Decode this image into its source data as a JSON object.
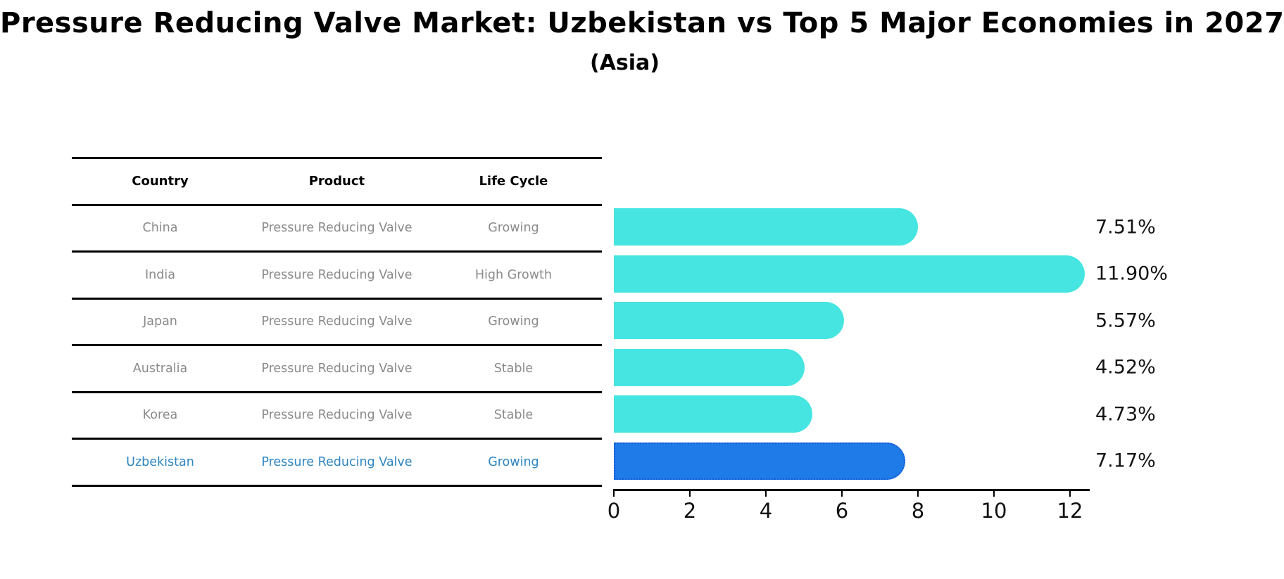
{
  "title": "Pressure Reducing Valve Market: Uzbekistan vs Top 5 Major Economies in 2027",
  "subtitle": "(Asia)",
  "table": {
    "headers": [
      "Country",
      "Product",
      "Life Cycle"
    ],
    "rows": [
      {
        "country": "China",
        "product": "Pressure Reducing Valve",
        "life_cycle": "Growing",
        "highlight": false
      },
      {
        "country": "India",
        "product": "Pressure Reducing Valve",
        "life_cycle": "High Growth",
        "highlight": false
      },
      {
        "country": "Japan",
        "product": "Pressure Reducing Valve",
        "life_cycle": "Growing",
        "highlight": false
      },
      {
        "country": "Australia",
        "product": "Pressure Reducing Valve",
        "life_cycle": "Stable",
        "highlight": false
      },
      {
        "country": "Korea",
        "product": "Pressure Reducing Valve",
        "life_cycle": "Stable",
        "highlight": false
      },
      {
        "country": "Uzbekistan",
        "product": "Pressure Reducing Valve",
        "life_cycle": "Growing",
        "highlight": true
      }
    ]
  },
  "chart_data": {
    "type": "bar",
    "orientation": "horizontal",
    "title": "Pressure Reducing Valve Market: Uzbekistan vs Top 5 Major Economies in 2027",
    "subtitle": "(Asia)",
    "categories": [
      "China",
      "India",
      "Japan",
      "Australia",
      "Korea",
      "Uzbekistan"
    ],
    "values": [
      7.51,
      11.9,
      5.57,
      4.52,
      4.73,
      7.17
    ],
    "value_labels": [
      "7.51%",
      "11.90%",
      "5.57%",
      "4.52%",
      "4.73%",
      "7.17%"
    ],
    "xlim": [
      0,
      12.5
    ],
    "x_ticks": [
      0,
      2,
      4,
      6,
      8,
      10,
      12
    ],
    "grid": false,
    "legend": false,
    "highlight_category": "Uzbekistan"
  },
  "colors": {
    "bar": "#46e5e1",
    "highlight_bar": "#1f7be8",
    "highlight_bar_border": "#1358d8",
    "highlight_text": "#2e86c1",
    "table_text": "#8a8a8a",
    "heading_text": "#000000",
    "axis": "#000000"
  }
}
